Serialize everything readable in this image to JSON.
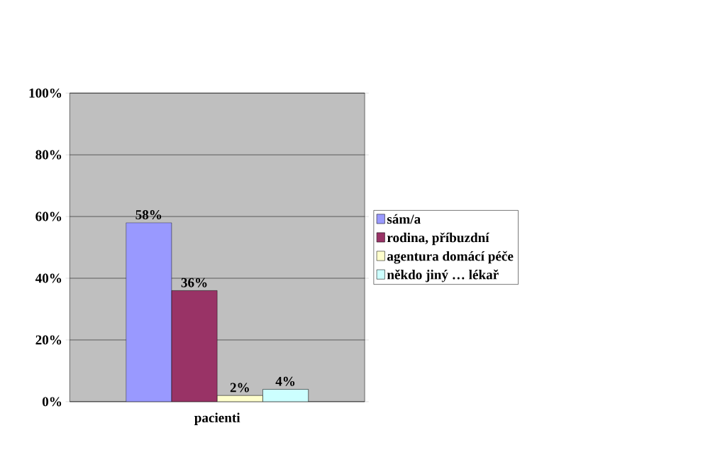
{
  "chart_data": {
    "type": "bar",
    "categories": [
      "pacienti"
    ],
    "series": [
      {
        "name": "sám/a",
        "color": "#9999ff",
        "values": [
          58
        ],
        "value_labels": [
          "58%"
        ]
      },
      {
        "name": "rodina, příbuzdní",
        "color": "#993366",
        "values": [
          36
        ],
        "value_labels": [
          "36%"
        ]
      },
      {
        "name": "agentura domácí péče",
        "color": "#ffffcc",
        "values": [
          2
        ],
        "value_labels": [
          "2%"
        ]
      },
      {
        "name": "někdo jiný … lékař",
        "color": "#ccffff",
        "values": [
          4
        ],
        "value_labels": [
          "4%"
        ]
      }
    ],
    "ylim": [
      0,
      100
    ],
    "yticks": [
      {
        "value": 0,
        "label": "0%"
      },
      {
        "value": 20,
        "label": "20%"
      },
      {
        "value": 40,
        "label": "40%"
      },
      {
        "value": 60,
        "label": "60%"
      },
      {
        "value": 80,
        "label": "80%"
      },
      {
        "value": 100,
        "label": "100%"
      }
    ],
    "grid": "y",
    "legend": "right"
  }
}
